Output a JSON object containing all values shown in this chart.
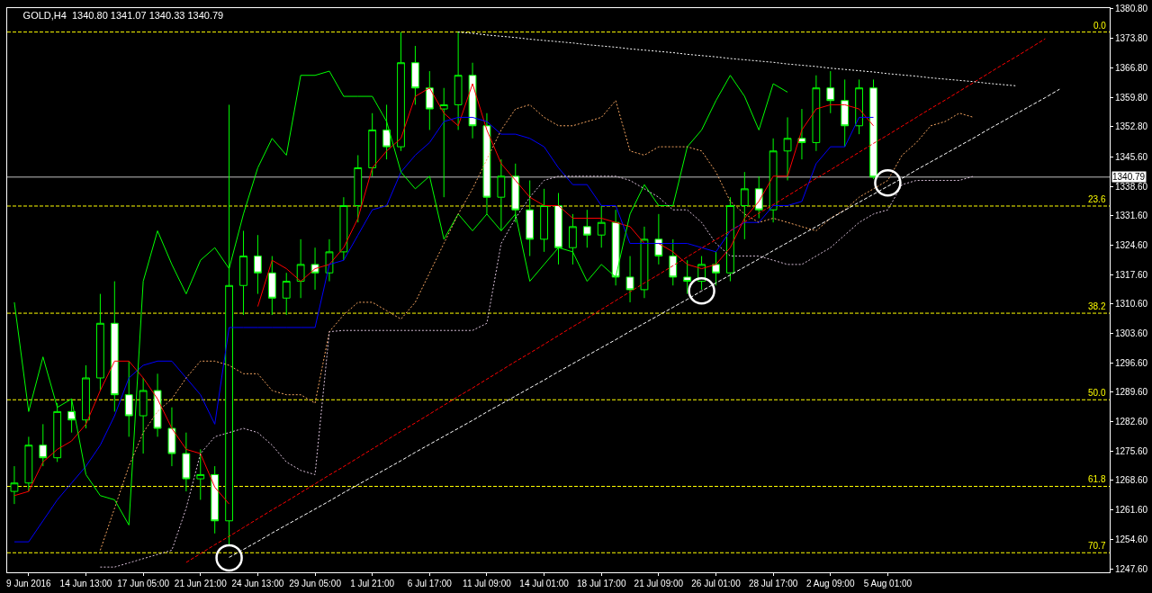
{
  "chart_data": {
    "type": "candlestick",
    "title": "GOLD,H4  1340.80 1341.07 1340.33 1340.79",
    "categories": [
      null,
      "9 Jun 2016",
      null,
      null,
      null,
      "14 Jun 13:00",
      null,
      null,
      null,
      "17 Jun 05:00",
      null,
      null,
      null,
      "21 Jun 21:00",
      null,
      null,
      null,
      "24 Jun 13:00",
      null,
      null,
      null,
      "29 Jun 05:00",
      null,
      null,
      null,
      "1 Jul 21:00",
      null,
      null,
      null,
      "6 Jul 17:00",
      null,
      null,
      null,
      "11 Jul 09:00",
      null,
      null,
      null,
      "14 Jul 01:00",
      null,
      null,
      null,
      "18 Jul 17:00",
      null,
      null,
      null,
      "21 Jul 09:00",
      null,
      null,
      null,
      "26 Jul 01:00",
      null,
      null,
      null,
      "28 Jul 17:00",
      null,
      null,
      null,
      "2 Aug 09:00",
      null,
      null,
      null,
      "5 Aug 01:00",
      null,
      null,
      null,
      null,
      null,
      null,
      null,
      null,
      null,
      null,
      null,
      null,
      null,
      null,
      null
    ],
    "ohlc": [
      [
        1266,
        1272,
        1263,
        1268
      ],
      [
        1268,
        1279,
        1266,
        1277
      ],
      [
        1277,
        1282,
        1272,
        1274
      ],
      [
        1274,
        1287,
        1273,
        1285
      ],
      [
        1285,
        1288,
        1280,
        1283
      ],
      [
        1283,
        1296,
        1281,
        1293
      ],
      [
        1293,
        1313,
        1290,
        1306
      ],
      [
        1306,
        1316,
        1285,
        1289
      ],
      [
        1289,
        1297,
        1279,
        1284
      ],
      [
        1284,
        1293,
        1275,
        1290
      ],
      [
        1290,
        1294,
        1279,
        1281
      ],
      [
        1281,
        1286,
        1272,
        1275
      ],
      [
        1275,
        1280,
        1266,
        1269
      ],
      [
        1269,
        1276,
        1264,
        1270
      ],
      [
        1270,
        1272,
        1256,
        1259
      ],
      [
        1259,
        1358,
        1253.3,
        1315
      ],
      [
        1315,
        1328,
        1308,
        1322
      ],
      [
        1322,
        1327,
        1313,
        1318
      ],
      [
        1318,
        1322,
        1308,
        1312
      ],
      [
        1312,
        1318,
        1308,
        1316
      ],
      [
        1316,
        1326,
        1312,
        1320
      ],
      [
        1320,
        1324,
        1314,
        1318
      ],
      [
        1318,
        1326,
        1316,
        1323
      ],
      [
        1323,
        1336,
        1321,
        1334
      ],
      [
        1334,
        1346,
        1330,
        1343
      ],
      [
        1343,
        1356,
        1341,
        1352
      ],
      [
        1352,
        1358,
        1345,
        1348
      ],
      [
        1348,
        1375.3,
        1347,
        1368
      ],
      [
        1368,
        1372,
        1358,
        1362
      ],
      [
        1362,
        1366,
        1352,
        1357
      ],
      [
        1357,
        1362,
        1336,
        1358
      ],
      [
        1358,
        1375.3,
        1352,
        1365
      ],
      [
        1365,
        1368,
        1350,
        1353
      ],
      [
        1353,
        1356,
        1332,
        1336
      ],
      [
        1336,
        1345,
        1328,
        1341
      ],
      [
        1341,
        1344,
        1330,
        1333
      ],
      [
        1333,
        1340,
        1322,
        1326
      ],
      [
        1326,
        1338,
        1323,
        1334
      ],
      [
        1334,
        1337,
        1320,
        1324
      ],
      [
        1324,
        1332,
        1320,
        1329
      ],
      [
        1329,
        1333,
        1324,
        1327
      ],
      [
        1327,
        1334,
        1324,
        1330
      ],
      [
        1330,
        1333,
        1315,
        1317
      ],
      [
        1317,
        1322,
        1311,
        1314
      ],
      [
        1314,
        1329,
        1312,
        1326
      ],
      [
        1326,
        1332,
        1320,
        1322
      ],
      [
        1322,
        1326,
        1315,
        1317
      ],
      [
        1317,
        1321,
        1313,
        1316
      ],
      [
        1316,
        1322,
        1314,
        1320
      ],
      [
        1320,
        1323,
        1315,
        1318
      ],
      [
        1318,
        1336,
        1316,
        1334
      ],
      [
        1334,
        1342,
        1326,
        1338
      ],
      [
        1338,
        1341,
        1331,
        1333
      ],
      [
        1333,
        1350,
        1330,
        1347
      ],
      [
        1347,
        1355,
        1340,
        1350
      ],
      [
        1350,
        1357,
        1345,
        1349
      ],
      [
        1349,
        1365,
        1347,
        1362
      ],
      [
        1362,
        1366,
        1356,
        1359
      ],
      [
        1359,
        1364,
        1348,
        1353
      ],
      [
        1353,
        1364,
        1351,
        1362
      ],
      [
        1362,
        1364,
        1340.33,
        1340.79
      ],
      null,
      null,
      null,
      null,
      null,
      null,
      null,
      null,
      null,
      null,
      null,
      null,
      null,
      null,
      null,
      null
    ],
    "color": "#00ff00",
    "series": [
      {
        "type": "line",
        "color": "#ff0000",
        "line_style": "solid",
        "values": [
          1265,
          1266,
          1273,
          1276,
          1278,
          1282,
          1290,
          1297,
          1297,
          1293,
          1288,
          1281,
          1276,
          1275,
          1267,
          1263,
          null,
          1310,
          1321,
          1319,
          1316,
          1319,
          1320,
          1324,
          1331,
          1343,
          1347,
          1350,
          1360,
          1362,
          1356,
          1353,
          1363,
          1352,
          1344,
          1340,
          1336,
          1334,
          1334,
          1331,
          1331,
          1331,
          1330,
          1329,
          1325,
          1325,
          1323,
          1320,
          1319,
          1320,
          1324,
          1331,
          1335,
          1341,
          1341,
          1352,
          1357,
          1358,
          1358,
          1357,
          1353,
          null,
          null,
          null,
          null,
          null,
          null,
          null,
          null,
          null,
          null,
          null,
          null,
          null,
          null,
          null,
          null
        ]
      },
      {
        "type": "line",
        "color": "#0000ff",
        "line_style": "solid",
        "values": [
          1254,
          1254,
          1259,
          1264,
          1268,
          1272,
          1277,
          1284,
          1293,
          1296,
          1297,
          1297,
          1293,
          1289,
          1282,
          1305,
          1305,
          1305,
          1305,
          1305,
          1305,
          1305,
          1320,
          1321,
          1327,
          1333,
          1334,
          1342,
          1346,
          1349,
          1354,
          1355,
          1355,
          1354,
          1351,
          1351,
          1350,
          1348,
          1343,
          1339,
          1339,
          1334,
          1334,
          1325,
          1325,
          1325,
          1325,
          1325,
          1324,
          1323,
          1328,
          1330,
          1330,
          1334,
          1334,
          1335,
          1344,
          1348,
          1348,
          1355,
          1355,
          null,
          null,
          null,
          null,
          null,
          null,
          null,
          null,
          null,
          null,
          null,
          null,
          null,
          null,
          null,
          null
        ]
      },
      {
        "type": "line",
        "color": "#00ff00",
        "line_style": "solid",
        "values": [
          1311,
          1285,
          1298,
          1286,
          1288,
          1270,
          1265,
          1264,
          1258,
          1316,
          1328,
          1320,
          1313,
          1321,
          1324,
          1319,
          1332,
          1343,
          1350,
          1346,
          1365,
          1365,
          1366,
          1360,
          1360,
          1360,
          1354,
          1342,
          1338,
          1341,
          1326,
          1332,
          1328,
          1332,
          1328,
          1332,
          1316,
          1320,
          1324,
          1323,
          1316,
          1320,
          1317,
          1332,
          1339,
          1334,
          1334,
          1348,
          1352,
          1359,
          1365,
          1360,
          1352,
          1363,
          1361,
          null,
          null,
          null,
          null,
          null,
          null,
          null,
          null,
          null,
          null,
          null,
          null,
          null,
          null,
          null,
          null,
          null,
          null,
          null,
          null,
          null,
          null
        ]
      },
      {
        "type": "line",
        "color": "#f4a460",
        "line_style": "dotted",
        "values": [
          null,
          null,
          null,
          null,
          null,
          null,
          1252,
          1262,
          1272,
          1280,
          1285,
          1288,
          1293,
          1297,
          1297,
          1296,
          1294,
          1294,
          1290,
          1289,
          1289,
          1287,
          1304,
          1308,
          1311,
          1311,
          1309,
          1307,
          1311,
          1318,
          1325,
          1332,
          1338,
          1345,
          1352,
          1357,
          1358,
          1355,
          1353,
          1353,
          1354,
          1355,
          1359,
          1347,
          1346,
          1348,
          1348,
          1348,
          1347,
          1342,
          1335,
          1332,
          1330,
          1331,
          1330,
          1329,
          1328,
          1331,
          1333,
          1336,
          1338,
          1340,
          1346,
          1349,
          1353,
          1354,
          1356,
          1355,
          null,
          null,
          null,
          null,
          null,
          null,
          null,
          null,
          null
        ]
      },
      {
        "type": "line",
        "color": "#d8bfd8",
        "line_style": "dotted",
        "values": [
          null,
          null,
          null,
          null,
          null,
          null,
          1248,
          1248,
          1249,
          1250,
          1251,
          1252,
          1262,
          1275,
          1279,
          1280,
          1281,
          1280,
          1277,
          1273,
          1271,
          1270,
          1304,
          1304.3,
          1304.3,
          1304.3,
          1304.3,
          1304.3,
          1304.3,
          1304.3,
          1304.3,
          1304.3,
          1304.3,
          1306,
          1325,
          1331,
          1336,
          1340,
          1341,
          1341,
          1341,
          1341,
          1341,
          1340,
          1338,
          1336,
          1333,
          1333,
          1330,
          1325,
          1322,
          1322,
          1322,
          1321,
          1320,
          1320,
          1322,
          1324,
          1327,
          1330,
          1332,
          1333,
          1339,
          1340,
          1340,
          1340,
          1340,
          1341,
          null,
          null,
          null,
          null,
          null,
          null,
          null,
          null,
          null
        ]
      },
      {
        "type": "line",
        "color": "#ff0000",
        "line_style": "dashed",
        "values": [
          null,
          null,
          null,
          null,
          null,
          null,
          null,
          null,
          null,
          null,
          null,
          null,
          1249.1,
          1251.2,
          1253.3,
          1255.3,
          1257.4,
          1259.5,
          1261.6,
          1263.6,
          1265.7,
          1267.8,
          1269.9,
          1271.9,
          1274.0,
          1276.1,
          1278.2,
          1280.3,
          1282.3,
          1284.4,
          1286.5,
          1288.6,
          1290.6,
          1292.7,
          1294.8,
          1296.9,
          1298.9,
          1301.0,
          1303.1,
          1305.2,
          1307.2,
          1309.3,
          1311.4,
          1313.5,
          1315.6,
          1317.6,
          1319.7,
          1321.8,
          1323.9,
          1325.9,
          1328.0,
          1330.1,
          1332.2,
          1334.2,
          1336.3,
          1338.4,
          1340.5,
          1342.5,
          1344.6,
          1346.7,
          1348.8,
          1350.8,
          1352.9,
          1355.0,
          1357.1,
          1359.1,
          1361.2,
          1363.3,
          1365.4,
          1367.5,
          1369.5,
          1371.6,
          1373.7,
          null,
          null,
          null,
          null
        ]
      },
      {
        "type": "line",
        "color": "#ffffff",
        "line_style": "dashed",
        "values": [
          null,
          null,
          null,
          null,
          null,
          null,
          null,
          null,
          null,
          null,
          null,
          null,
          null,
          null,
          null,
          1250.3,
          1252.2,
          1254.1,
          1256.1,
          1258.0,
          1259.9,
          1261.8,
          1263.7,
          1265.7,
          1267.6,
          1269.5,
          1271.4,
          1273.3,
          1275.3,
          1277.2,
          1279.1,
          1281.0,
          1282.9,
          1284.9,
          1286.8,
          1288.7,
          1290.6,
          1292.5,
          1294.5,
          1296.4,
          1298.3,
          1300.2,
          1302.1,
          1304.1,
          1306.0,
          1307.9,
          1309.8,
          1311.7,
          1313.7,
          1315.6,
          1317.5,
          1319.4,
          1321.3,
          1323.3,
          1325.2,
          1327.1,
          1329.0,
          1330.9,
          1332.9,
          1334.8,
          1336.7,
          1338.6,
          1340.5,
          1342.5,
          1344.4,
          1346.3,
          1348.2,
          1350.1,
          1352.1,
          1354.0,
          1355.9,
          1357.8,
          1359.7,
          1361.7,
          null,
          null,
          null
        ]
      },
      {
        "type": "line",
        "color": "#ffffff",
        "line_style": "dotted",
        "values": [
          null,
          null,
          null,
          null,
          null,
          null,
          null,
          null,
          null,
          null,
          null,
          null,
          null,
          null,
          null,
          null,
          null,
          null,
          null,
          null,
          null,
          null,
          null,
          null,
          null,
          null,
          null,
          null,
          null,
          null,
          null,
          1375.3,
          1375.0,
          1374.6,
          1374.3,
          1374.0,
          1373.6,
          1373.3,
          1373.0,
          1372.7,
          1372.3,
          1372.0,
          1371.7,
          1371.3,
          1371.0,
          1370.7,
          1370.4,
          1370.0,
          1369.7,
          1369.4,
          1369.0,
          1368.7,
          1368.4,
          1368.1,
          1367.7,
          1367.4,
          1367.1,
          1366.7,
          1366.4,
          1366.1,
          1365.8,
          1365.4,
          1365.1,
          1364.8,
          1364.4,
          1364.1,
          1363.8,
          1363.5,
          1363.1,
          1362.8,
          1362.5,
          null,
          null,
          null,
          null,
          null,
          null
        ]
      },
      {
        "type": "scatter",
        "color": "#ffffff",
        "marker": "circle",
        "values": [
          null,
          null,
          null,
          null,
          null,
          null,
          null,
          null,
          null,
          null,
          null,
          null,
          null,
          null,
          null,
          1250.2,
          null,
          null,
          null,
          null,
          null,
          null,
          null,
          null,
          null,
          null,
          null,
          null,
          null,
          null,
          null,
          null,
          null,
          null,
          null,
          null,
          null,
          null,
          null,
          null,
          null,
          null,
          null,
          null,
          null,
          null,
          null,
          null,
          1313.7,
          null,
          null,
          null,
          null,
          null,
          null,
          null,
          null,
          null,
          null,
          null,
          null,
          1339.4,
          null,
          null,
          null,
          null,
          null,
          null,
          null,
          null,
          null,
          null,
          null,
          null,
          null,
          null,
          null
        ]
      }
    ],
    "ref_lines": [
      {
        "axis": "y",
        "value": 1375.3,
        "color": "#ffff00",
        "line_style": "dashed"
      },
      {
        "axis": "y",
        "value": 1333.9,
        "color": "#ffff00",
        "line_style": "dashed"
      },
      {
        "axis": "y",
        "value": 1308.4,
        "color": "#ffff00",
        "line_style": "dashed"
      },
      {
        "axis": "y",
        "value": 1287.8,
        "color": "#ffff00",
        "line_style": "dashed"
      },
      {
        "axis": "y",
        "value": 1267.2,
        "color": "#ffff00",
        "line_style": "dashed"
      },
      {
        "axis": "y",
        "value": 1251.4,
        "color": "#ffff00",
        "line_style": "dashed"
      },
      {
        "axis": "y",
        "value": 1340.79,
        "label": "1340.79",
        "color": "#c0c0c0",
        "line_style": "solid"
      }
    ],
    "annotations": [
      {
        "text": "0.0",
        "y": 1375.3
      },
      {
        "text": "23.6",
        "y": 1333.9
      },
      {
        "text": "38.2",
        "y": 1308.4
      },
      {
        "text": "50.0",
        "y": 1287.8
      },
      {
        "text": "61.8",
        "y": 1267.2
      },
      {
        "text": "70.7",
        "y": 1251.4
      }
    ],
    "ylim": [
      1246.75,
      1381.0
    ],
    "yticks": [
      {
        "value": 1380.8,
        "label": "1380.80"
      },
      {
        "value": 1373.8,
        "label": "1373.80"
      },
      {
        "value": 1366.8,
        "label": "1366.80"
      },
      {
        "value": 1359.8,
        "label": "1359.80"
      },
      {
        "value": 1352.8,
        "label": "1352.80"
      },
      {
        "value": 1345.6,
        "label": "1345.60"
      },
      {
        "value": 1338.6,
        "label": "1338.60"
      },
      {
        "value": 1331.6,
        "label": "1331.60"
      },
      {
        "value": 1324.6,
        "label": "1324.60"
      },
      {
        "value": 1317.6,
        "label": "1317.60"
      },
      {
        "value": 1310.6,
        "label": "1310.60"
      },
      {
        "value": 1303.6,
        "label": "1303.60"
      },
      {
        "value": 1296.6,
        "label": "1296.60"
      },
      {
        "value": 1289.6,
        "label": "1289.60"
      },
      {
        "value": 1282.6,
        "label": "1282.60"
      },
      {
        "value": 1275.6,
        "label": "1275.60"
      },
      {
        "value": 1268.6,
        "label": "1268.60"
      },
      {
        "value": 1261.6,
        "label": "1261.60"
      },
      {
        "value": 1254.6,
        "label": "1254.60"
      },
      {
        "value": 1247.6,
        "label": "1247.60"
      }
    ],
    "grid": false
  }
}
